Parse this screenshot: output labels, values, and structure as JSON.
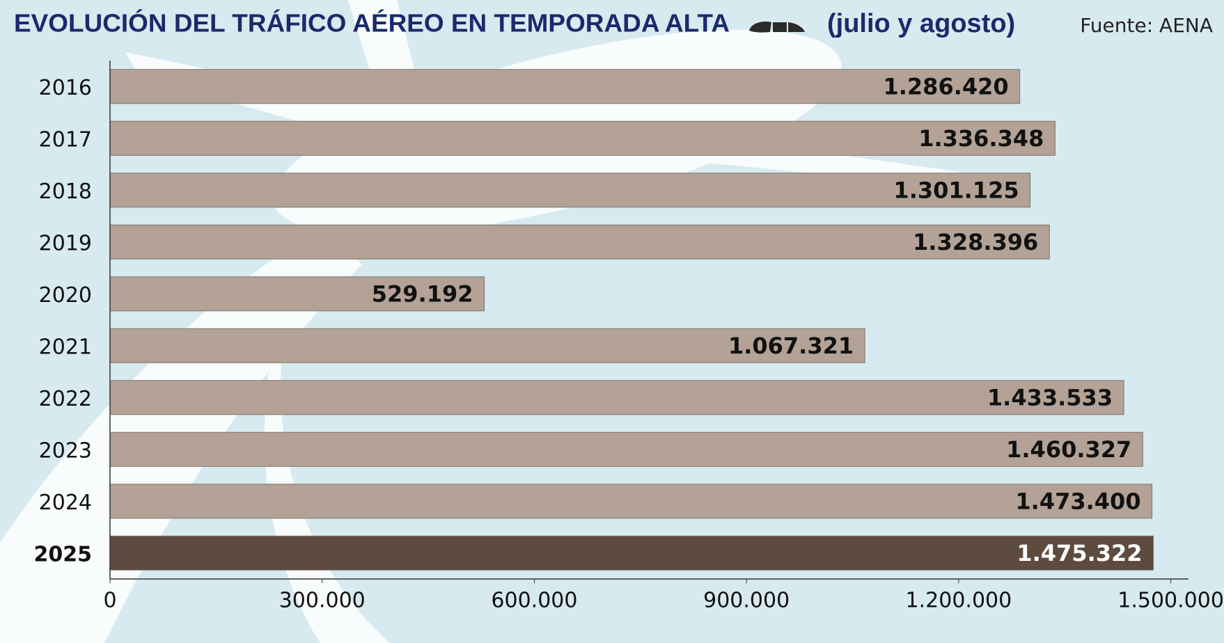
{
  "chart_data": {
    "type": "bar",
    "orientation": "horizontal",
    "title": "EVOLUCIÓN DEL TRÁFICO AÉREO EN TEMPORADA ALTA",
    "subtitle": "(julio y agosto)",
    "source": "Fuente: AENA",
    "categories": [
      "2016",
      "2017",
      "2018",
      "2019",
      "2020",
      "2021",
      "2022",
      "2023",
      "2024",
      "2025"
    ],
    "values": [
      1286420,
      1336348,
      1301125,
      1328396,
      529192,
      1067321,
      1433533,
      1460327,
      1473400,
      1475322
    ],
    "value_labels": [
      "1.286.420",
      "1.336.348",
      "1.301.125",
      "1.328.396",
      "529.192",
      "1.067.321",
      "1.433.533",
      "1.460.327",
      "1.473.400",
      "1.475.322"
    ],
    "colors": [
      "#b3a295",
      "#b3a295",
      "#b3a295",
      "#b3a295",
      "#b3a295",
      "#b3a295",
      "#b3a295",
      "#b3a295",
      "#b3a295",
      "#5e4b3f"
    ],
    "xlim": [
      0,
      1525000
    ],
    "xticks": [
      0,
      {
        "value": 300000,
        "label": "300.000"
      },
      {
        "value": 600000,
        "label": "600.000"
      },
      {
        "value": 900000,
        "label": "900.000"
      },
      {
        "value": 1200000,
        "label": "1.200.000"
      },
      {
        "value": 1500000,
        "label": "1.500.000"
      }
    ],
    "grid": false
  }
}
